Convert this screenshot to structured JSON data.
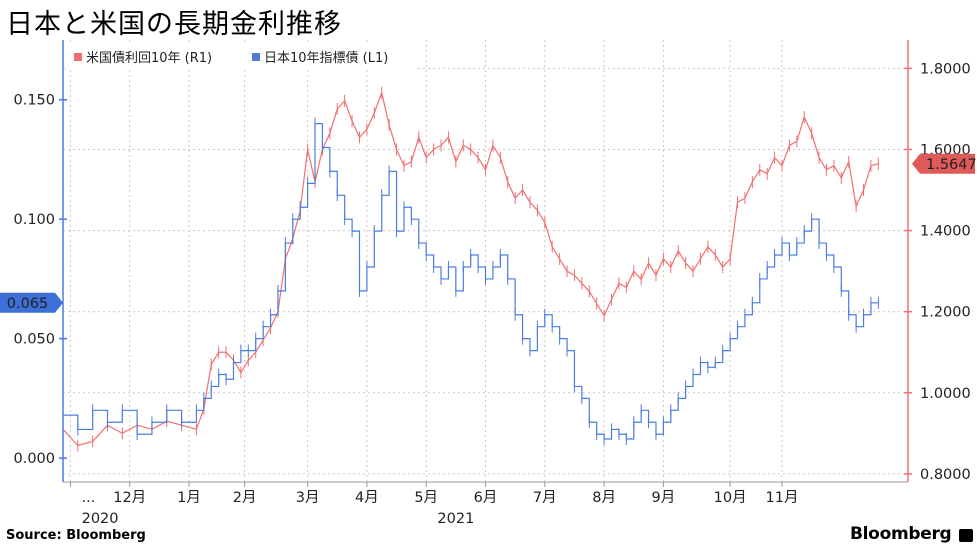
{
  "title": "日本と米国の長期金利推移",
  "source": "Source:  Bloomberg",
  "brand": "Bloomberg",
  "colors": {
    "us": "#f07070",
    "jp": "#4a7de0",
    "us_tag": "#e05a5a",
    "jp_tag": "#3d6fd8"
  },
  "chart_data": {
    "type": "line",
    "x_axis": {
      "tick_labels": [
        "...",
        "12月",
        "1月",
        "2月",
        "3月",
        "4月",
        "5月",
        "6月",
        "7月",
        "8月",
        "9月",
        "10月",
        "11月"
      ],
      "year_labels": [
        "2020",
        "2021"
      ]
    },
    "left_axis": {
      "ylim": [
        -0.01,
        0.175
      ],
      "ticks": [
        "0.150",
        "0.100",
        "0.050",
        "0.000"
      ],
      "tick_values": [
        0.15,
        0.1,
        0.05,
        0.0
      ]
    },
    "right_axis": {
      "ylim": [
        0.78,
        1.87
      ],
      "ticks": [
        "1.8000",
        "1.6000",
        "1.4000",
        "1.2000",
        "1.0000",
        "0.8000"
      ],
      "tick_values": [
        1.8,
        1.6,
        1.4,
        1.2,
        1.0,
        0.8
      ]
    },
    "grid": true,
    "legend_position": "top-left",
    "series": [
      {
        "name": "米国債利回10年 (R1)",
        "axis": "right",
        "last_value_label": "1.5647",
        "points": [
          [
            0,
            0.91
          ],
          [
            2,
            0.87
          ],
          [
            4,
            0.88
          ],
          [
            6,
            0.92
          ],
          [
            8,
            0.9
          ],
          [
            10,
            0.92
          ],
          [
            12,
            0.91
          ],
          [
            14,
            0.93
          ],
          [
            16,
            0.92
          ],
          [
            18,
            0.91
          ],
          [
            19,
            0.96
          ],
          [
            20,
            1.07
          ],
          [
            21,
            1.1
          ],
          [
            22,
            1.1
          ],
          [
            23,
            1.08
          ],
          [
            24,
            1.05
          ],
          [
            25,
            1.08
          ],
          [
            26,
            1.1
          ],
          [
            27,
            1.13
          ],
          [
            28,
            1.16
          ],
          [
            29,
            1.2
          ],
          [
            30,
            1.33
          ],
          [
            31,
            1.38
          ],
          [
            32,
            1.45
          ],
          [
            33,
            1.6
          ],
          [
            34,
            1.52
          ],
          [
            35,
            1.6
          ],
          [
            36,
            1.64
          ],
          [
            37,
            1.7
          ],
          [
            38,
            1.72
          ],
          [
            39,
            1.67
          ],
          [
            40,
            1.63
          ],
          [
            41,
            1.65
          ],
          [
            42,
            1.69
          ],
          [
            43,
            1.74
          ],
          [
            44,
            1.66
          ],
          [
            45,
            1.6
          ],
          [
            46,
            1.56
          ],
          [
            47,
            1.57
          ],
          [
            48,
            1.63
          ],
          [
            49,
            1.58
          ],
          [
            50,
            1.6
          ],
          [
            51,
            1.61
          ],
          [
            52,
            1.63
          ],
          [
            53,
            1.57
          ],
          [
            54,
            1.61
          ],
          [
            55,
            1.6
          ],
          [
            56,
            1.58
          ],
          [
            57,
            1.55
          ],
          [
            58,
            1.61
          ],
          [
            59,
            1.58
          ],
          [
            60,
            1.52
          ],
          [
            61,
            1.48
          ],
          [
            62,
            1.5
          ],
          [
            63,
            1.47
          ],
          [
            64,
            1.45
          ],
          [
            65,
            1.42
          ],
          [
            66,
            1.36
          ],
          [
            67,
            1.33
          ],
          [
            68,
            1.3
          ],
          [
            69,
            1.29
          ],
          [
            70,
            1.27
          ],
          [
            71,
            1.25
          ],
          [
            72,
            1.22
          ],
          [
            73,
            1.19
          ],
          [
            74,
            1.23
          ],
          [
            75,
            1.27
          ],
          [
            76,
            1.26
          ],
          [
            77,
            1.3
          ],
          [
            78,
            1.28
          ],
          [
            79,
            1.32
          ],
          [
            80,
            1.29
          ],
          [
            81,
            1.33
          ],
          [
            82,
            1.31
          ],
          [
            83,
            1.35
          ],
          [
            84,
            1.32
          ],
          [
            85,
            1.3
          ],
          [
            86,
            1.33
          ],
          [
            87,
            1.36
          ],
          [
            88,
            1.34
          ],
          [
            89,
            1.31
          ],
          [
            90,
            1.33
          ],
          [
            91,
            1.47
          ],
          [
            92,
            1.48
          ],
          [
            93,
            1.52
          ],
          [
            94,
            1.55
          ],
          [
            95,
            1.54
          ],
          [
            96,
            1.58
          ],
          [
            97,
            1.56
          ],
          [
            98,
            1.61
          ],
          [
            99,
            1.62
          ],
          [
            100,
            1.68
          ],
          [
            101,
            1.64
          ],
          [
            102,
            1.58
          ],
          [
            103,
            1.55
          ],
          [
            104,
            1.56
          ],
          [
            105,
            1.53
          ],
          [
            106,
            1.57
          ],
          [
            107,
            1.46
          ],
          [
            108,
            1.5
          ],
          [
            109,
            1.56
          ],
          [
            110,
            1.5647
          ]
        ]
      },
      {
        "name": "日本10年指標債 (L1)",
        "axis": "left",
        "last_value_label": "0.065",
        "points": [
          [
            0,
            0.018
          ],
          [
            2,
            0.012
          ],
          [
            4,
            0.02
          ],
          [
            6,
            0.015
          ],
          [
            8,
            0.02
          ],
          [
            10,
            0.01
          ],
          [
            12,
            0.015
          ],
          [
            14,
            0.02
          ],
          [
            16,
            0.015
          ],
          [
            18,
            0.02
          ],
          [
            19,
            0.025
          ],
          [
            20,
            0.03
          ],
          [
            21,
            0.035
          ],
          [
            22,
            0.033
          ],
          [
            23,
            0.04
          ],
          [
            24,
            0.045
          ],
          [
            25,
            0.045
          ],
          [
            26,
            0.05
          ],
          [
            27,
            0.055
          ],
          [
            28,
            0.06
          ],
          [
            29,
            0.07
          ],
          [
            30,
            0.09
          ],
          [
            31,
            0.1
          ],
          [
            32,
            0.105
          ],
          [
            33,
            0.115
          ],
          [
            34,
            0.14
          ],
          [
            35,
            0.13
          ],
          [
            36,
            0.12
          ],
          [
            37,
            0.11
          ],
          [
            38,
            0.1
          ],
          [
            39,
            0.095
          ],
          [
            40,
            0.07
          ],
          [
            41,
            0.08
          ],
          [
            42,
            0.095
          ],
          [
            43,
            0.11
          ],
          [
            44,
            0.12
          ],
          [
            45,
            0.095
          ],
          [
            46,
            0.105
          ],
          [
            47,
            0.1
          ],
          [
            48,
            0.09
          ],
          [
            49,
            0.085
          ],
          [
            50,
            0.08
          ],
          [
            51,
            0.075
          ],
          [
            52,
            0.08
          ],
          [
            53,
            0.07
          ],
          [
            54,
            0.08
          ],
          [
            55,
            0.085
          ],
          [
            56,
            0.08
          ],
          [
            57,
            0.075
          ],
          [
            58,
            0.08
          ],
          [
            59,
            0.085
          ],
          [
            60,
            0.075
          ],
          [
            61,
            0.06
          ],
          [
            62,
            0.05
          ],
          [
            63,
            0.045
          ],
          [
            64,
            0.055
          ],
          [
            65,
            0.06
          ],
          [
            66,
            0.055
          ],
          [
            67,
            0.05
          ],
          [
            68,
            0.045
          ],
          [
            69,
            0.03
          ],
          [
            70,
            0.025
          ],
          [
            71,
            0.015
          ],
          [
            72,
            0.01
          ],
          [
            73,
            0.008
          ],
          [
            74,
            0.012
          ],
          [
            75,
            0.01
          ],
          [
            76,
            0.008
          ],
          [
            77,
            0.015
          ],
          [
            78,
            0.02
          ],
          [
            79,
            0.015
          ],
          [
            80,
            0.01
          ],
          [
            81,
            0.015
          ],
          [
            82,
            0.02
          ],
          [
            83,
            0.025
          ],
          [
            84,
            0.03
          ],
          [
            85,
            0.035
          ],
          [
            86,
            0.04
          ],
          [
            87,
            0.038
          ],
          [
            88,
            0.04
          ],
          [
            89,
            0.045
          ],
          [
            90,
            0.05
          ],
          [
            91,
            0.055
          ],
          [
            92,
            0.06
          ],
          [
            93,
            0.065
          ],
          [
            94,
            0.075
          ],
          [
            95,
            0.08
          ],
          [
            96,
            0.085
          ],
          [
            97,
            0.09
          ],
          [
            98,
            0.085
          ],
          [
            99,
            0.09
          ],
          [
            100,
            0.095
          ],
          [
            101,
            0.1
          ],
          [
            102,
            0.09
          ],
          [
            103,
            0.085
          ],
          [
            104,
            0.08
          ],
          [
            105,
            0.07
          ],
          [
            106,
            0.06
          ],
          [
            107,
            0.055
          ],
          [
            108,
            0.06
          ],
          [
            109,
            0.065
          ],
          [
            110,
            0.065
          ]
        ]
      }
    ]
  }
}
